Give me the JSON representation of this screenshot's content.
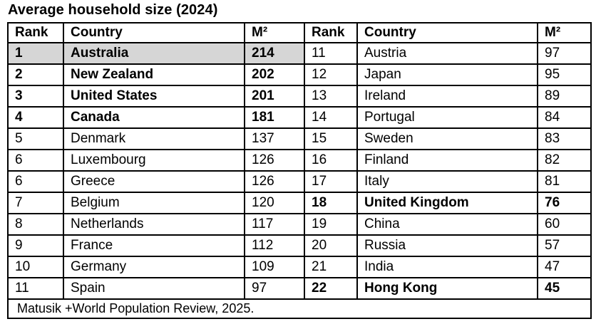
{
  "title": "Average household size (2024)",
  "source_note": "Matusik +World Population Review, 2025.",
  "colors": {
    "background": "#ffffff",
    "text": "#000000",
    "border": "#000000",
    "highlight_row_bg": "#d6d6d6"
  },
  "table": {
    "column_headers": [
      "Rank",
      "Country",
      "M²",
      "Rank",
      "Country",
      "M²"
    ],
    "rows": [
      {
        "left": {
          "rank": "1",
          "country": "Australia",
          "m2": "214",
          "bold": true,
          "highlight": true
        },
        "right": {
          "rank": "11",
          "country": "Austria",
          "m2": "97",
          "bold": false,
          "highlight": false
        }
      },
      {
        "left": {
          "rank": "2",
          "country": "New Zealand",
          "m2": "202",
          "bold": true,
          "highlight": false
        },
        "right": {
          "rank": "12",
          "country": "Japan",
          "m2": "95",
          "bold": false,
          "highlight": false
        }
      },
      {
        "left": {
          "rank": "3",
          "country": "United States",
          "m2": "201",
          "bold": true,
          "highlight": false
        },
        "right": {
          "rank": "13",
          "country": "Ireland",
          "m2": "89",
          "bold": false,
          "highlight": false
        }
      },
      {
        "left": {
          "rank": "4",
          "country": "Canada",
          "m2": "181",
          "bold": true,
          "highlight": false
        },
        "right": {
          "rank": "14",
          "country": "Portugal",
          "m2": "84",
          "bold": false,
          "highlight": false
        }
      },
      {
        "left": {
          "rank": "5",
          "country": "Denmark",
          "m2": "137",
          "bold": false,
          "highlight": false
        },
        "right": {
          "rank": "15",
          "country": "Sweden",
          "m2": "83",
          "bold": false,
          "highlight": false
        }
      },
      {
        "left": {
          "rank": "6",
          "country": "Luxembourg",
          "m2": "126",
          "bold": false,
          "highlight": false
        },
        "right": {
          "rank": "16",
          "country": "Finland",
          "m2": "82",
          "bold": false,
          "highlight": false
        }
      },
      {
        "left": {
          "rank": "6",
          "country": "Greece",
          "m2": "126",
          "bold": false,
          "highlight": false
        },
        "right": {
          "rank": "17",
          "country": "Italy",
          "m2": "81",
          "bold": false,
          "highlight": false
        }
      },
      {
        "left": {
          "rank": "7",
          "country": "Belgium",
          "m2": "120",
          "bold": false,
          "highlight": false
        },
        "right": {
          "rank": "18",
          "country": "United Kingdom",
          "m2": "76",
          "bold": true,
          "highlight": false
        }
      },
      {
        "left": {
          "rank": "8",
          "country": "Netherlands",
          "m2": "117",
          "bold": false,
          "highlight": false
        },
        "right": {
          "rank": "19",
          "country": "China",
          "m2": "60",
          "bold": false,
          "highlight": false
        }
      },
      {
        "left": {
          "rank": "9",
          "country": "France",
          "m2": "112",
          "bold": false,
          "highlight": false
        },
        "right": {
          "rank": "20",
          "country": "Russia",
          "m2": "57",
          "bold": false,
          "highlight": false
        }
      },
      {
        "left": {
          "rank": "10",
          "country": "Germany",
          "m2": "109",
          "bold": false,
          "highlight": false
        },
        "right": {
          "rank": "21",
          "country": "India",
          "m2": "47",
          "bold": false,
          "highlight": false
        }
      },
      {
        "left": {
          "rank": "11",
          "country": "Spain",
          "m2": "97",
          "bold": false,
          "highlight": false
        },
        "right": {
          "rank": "22",
          "country": "Hong Kong",
          "m2": "45",
          "bold": true,
          "highlight": false
        }
      }
    ]
  },
  "chart_data": {
    "type": "table",
    "title": "Average household size (2024)",
    "columns": [
      "Rank",
      "Country",
      "M²"
    ],
    "rows": [
      [
        1,
        "Australia",
        214
      ],
      [
        2,
        "New Zealand",
        202
      ],
      [
        3,
        "United States",
        201
      ],
      [
        4,
        "Canada",
        181
      ],
      [
        5,
        "Denmark",
        137
      ],
      [
        6,
        "Luxembourg",
        126
      ],
      [
        6,
        "Greece",
        126
      ],
      [
        7,
        "Belgium",
        120
      ],
      [
        8,
        "Netherlands",
        117
      ],
      [
        9,
        "France",
        112
      ],
      [
        10,
        "Germany",
        109
      ],
      [
        11,
        "Spain",
        97
      ],
      [
        11,
        "Austria",
        97
      ],
      [
        12,
        "Japan",
        95
      ],
      [
        13,
        "Ireland",
        89
      ],
      [
        14,
        "Portugal",
        84
      ],
      [
        15,
        "Sweden",
        83
      ],
      [
        16,
        "Finland",
        82
      ],
      [
        17,
        "Italy",
        81
      ],
      [
        18,
        "United Kingdom",
        76
      ],
      [
        19,
        "China",
        60
      ],
      [
        20,
        "Russia",
        57
      ],
      [
        21,
        "India",
        47
      ],
      [
        22,
        "Hong Kong",
        45
      ]
    ],
    "bold_rows": [
      "Australia",
      "New Zealand",
      "United States",
      "Canada",
      "United Kingdom",
      "Hong Kong"
    ],
    "highlighted_row": "Australia",
    "source": "Matusik +World Population Review, 2025."
  }
}
